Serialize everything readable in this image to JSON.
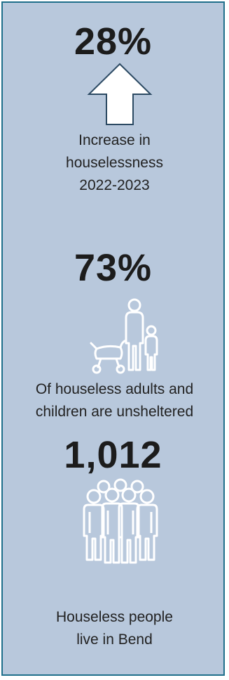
{
  "stats": [
    {
      "value": "28%",
      "icon": "up-arrow-icon",
      "caption_lines": [
        "Increase in",
        "houselessness",
        "2022-2023"
      ]
    },
    {
      "value": "73%",
      "icon": "family-with-stroller-icon",
      "caption_lines": [
        "Of houseless adults and",
        "children are unsheltered"
      ]
    },
    {
      "value": "1,012",
      "icon": "group-of-people-icon",
      "caption_lines": [
        "Houseless people",
        "live in Bend"
      ]
    }
  ],
  "colors": {
    "background": "#b8c8dc",
    "border": "#1f6f8b",
    "text": "#1e1e1e",
    "icon_stroke": "#ffffff"
  }
}
